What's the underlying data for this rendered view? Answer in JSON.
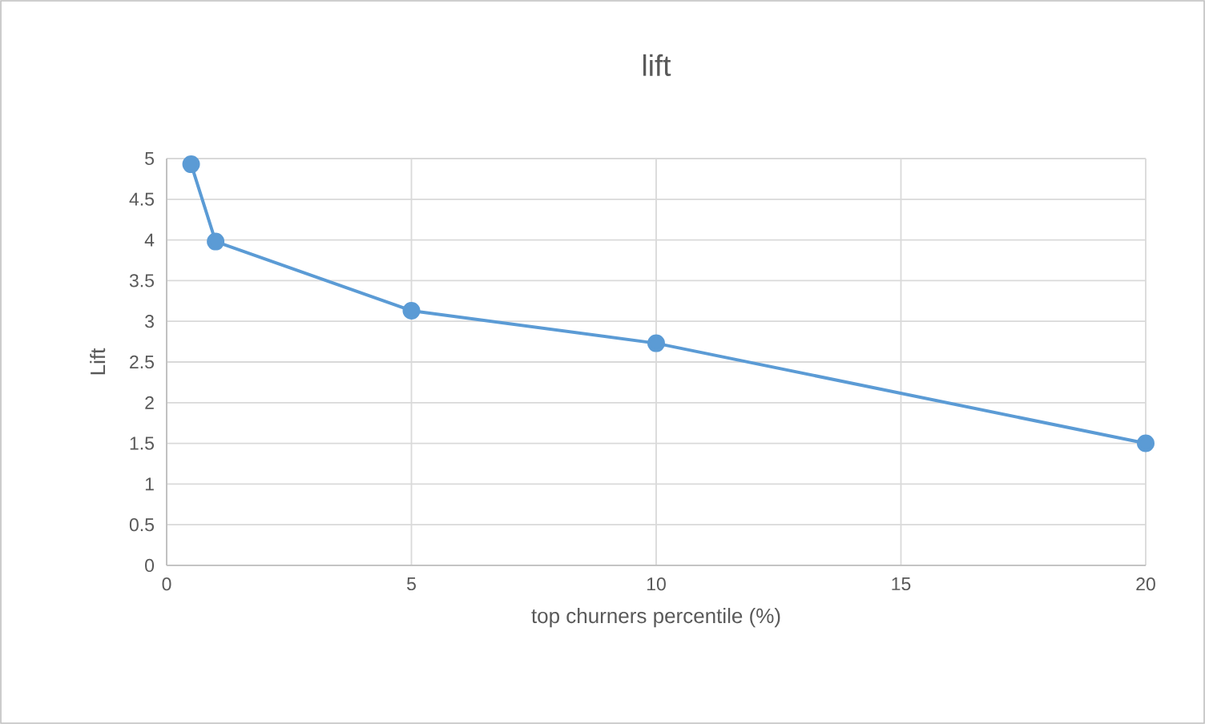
{
  "chart_data": {
    "type": "line",
    "title": "lift",
    "xlabel": "top churners percentile (%)",
    "ylabel": "Lift",
    "x": [
      0.5,
      1,
      5,
      10,
      20
    ],
    "series": [
      {
        "color": "#5b9bd5",
        "values": [
          4.93,
          3.98,
          3.13,
          2.73,
          1.5
        ]
      }
    ],
    "xlim": [
      0,
      20
    ],
    "xticks": [
      0,
      5,
      10,
      15,
      20
    ],
    "ylim": [
      0,
      5
    ],
    "yticks": [
      0,
      0.5,
      1,
      1.5,
      2,
      2.5,
      3,
      3.5,
      4,
      4.5,
      5
    ],
    "grid": true,
    "marker": "circle",
    "line_style": "solid"
  }
}
